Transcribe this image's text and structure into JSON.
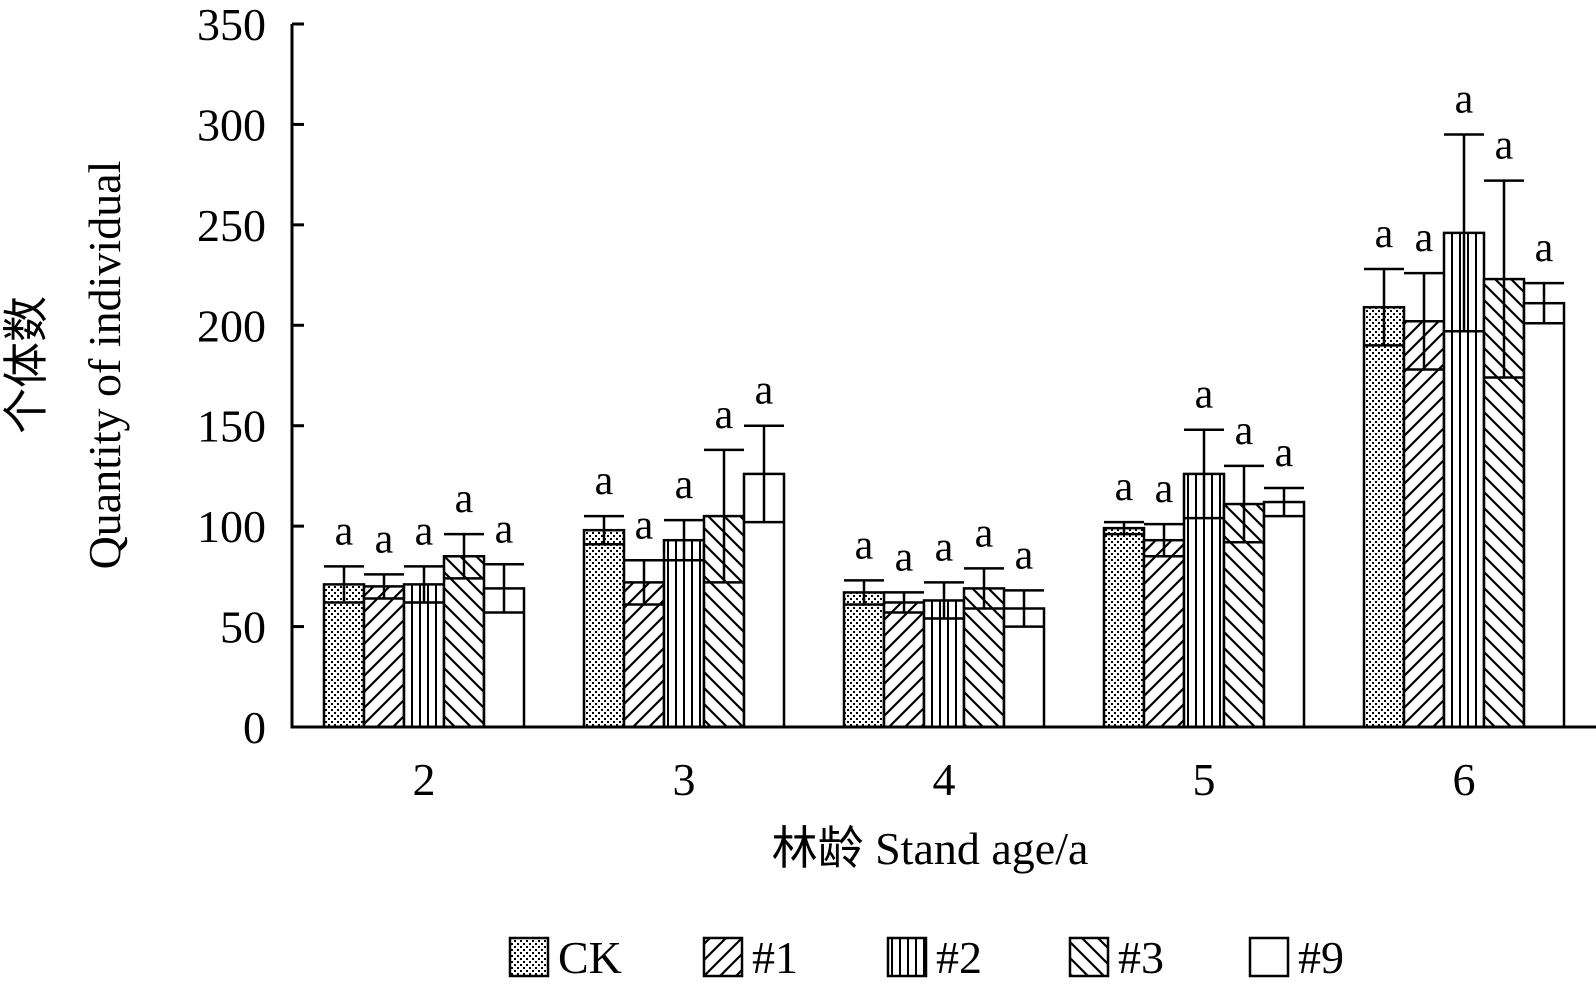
{
  "chart_data": {
    "type": "bar",
    "categories": [
      "2",
      "3",
      "4",
      "5",
      "6"
    ],
    "xlabel": "林龄  Stand age/a",
    "ylabel_cn": "个体数",
    "ylabel_en": "Quantity of individual",
    "ylim": [
      0,
      350
    ],
    "yticks": [
      "0",
      "50",
      "100",
      "150",
      "200",
      "250",
      "300",
      "350"
    ],
    "grid": false,
    "legend_position": "bottom",
    "series": [
      {
        "name": "CK",
        "pattern": "dots",
        "values": [
          71,
          98,
          67,
          99,
          209
        ],
        "errors": [
          9,
          7,
          6,
          3,
          19
        ],
        "labels": [
          "a",
          "a",
          "a",
          "a",
          "a"
        ]
      },
      {
        "name": "#1",
        "pattern": "diagonal",
        "values": [
          70,
          72,
          62,
          93,
          202
        ],
        "errors": [
          6,
          11,
          5,
          8,
          24
        ],
        "labels": [
          "a",
          "a",
          "a",
          "a",
          "a"
        ]
      },
      {
        "name": "#2",
        "pattern": "vertical",
        "values": [
          71,
          93,
          63,
          126,
          246
        ],
        "errors": [
          9,
          10,
          9,
          22,
          49
        ],
        "labels": [
          "a",
          "a",
          "a",
          "a",
          "a"
        ]
      },
      {
        "name": "#3",
        "pattern": "backdiagonal",
        "values": [
          85,
          105,
          69,
          111,
          223
        ],
        "errors": [
          11,
          33,
          10,
          19,
          49
        ],
        "labels": [
          "a",
          "a",
          "a",
          "a",
          "a"
        ]
      },
      {
        "name": "#9",
        "pattern": "none",
        "values": [
          69,
          126,
          59,
          112,
          211
        ],
        "errors": [
          12,
          24,
          9,
          7,
          10
        ],
        "labels": [
          "a",
          "a",
          "a",
          "a",
          "a"
        ]
      }
    ]
  }
}
